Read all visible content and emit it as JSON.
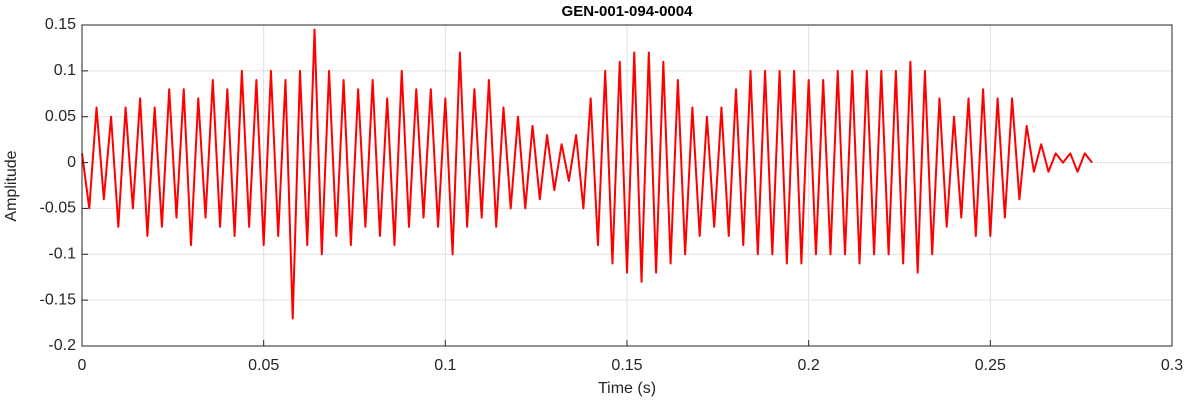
{
  "chart_data": {
    "type": "line",
    "title": "GEN-001-094-0004",
    "x_label": "Time (s)",
    "y_label": "Amplitude",
    "color": "#ff0000",
    "grid": true,
    "xlim": [
      0,
      0.3
    ],
    "xticks": [
      0,
      0.05,
      0.1,
      0.15,
      0.2,
      0.25,
      0.3
    ],
    "ylim": [
      -0.2,
      0.15
    ],
    "yticks": [
      -0.2,
      -0.15,
      -0.1,
      -0.05,
      0,
      0.05,
      0.1,
      0.15
    ],
    "x": [
      0,
      0.002,
      0.004,
      0.006,
      0.008,
      0.01,
      0.012,
      0.014,
      0.016,
      0.018,
      0.02,
      0.022,
      0.024,
      0.026,
      0.028,
      0.03,
      0.032,
      0.034,
      0.036,
      0.038,
      0.04,
      0.042,
      0.044,
      0.046,
      0.048,
      0.05,
      0.052,
      0.054,
      0.056,
      0.058,
      0.06,
      0.062,
      0.064,
      0.066,
      0.068,
      0.07,
      0.072,
      0.074,
      0.076,
      0.078,
      0.08,
      0.082,
      0.084,
      0.086,
      0.088,
      0.09,
      0.092,
      0.094,
      0.096,
      0.098,
      0.1,
      0.102,
      0.104,
      0.106,
      0.108,
      0.11,
      0.112,
      0.114,
      0.116,
      0.118,
      0.12,
      0.122,
      0.124,
      0.126,
      0.128,
      0.13,
      0.132,
      0.134,
      0.136,
      0.138,
      0.14,
      0.142,
      0.144,
      0.146,
      0.148,
      0.15,
      0.152,
      0.154,
      0.156,
      0.158,
      0.16,
      0.162,
      0.164,
      0.166,
      0.168,
      0.17,
      0.172,
      0.174,
      0.176,
      0.178,
      0.18,
      0.182,
      0.184,
      0.186,
      0.188,
      0.19,
      0.192,
      0.194,
      0.196,
      0.198,
      0.2,
      0.202,
      0.204,
      0.206,
      0.208,
      0.21,
      0.212,
      0.214,
      0.216,
      0.218,
      0.22,
      0.222,
      0.224,
      0.226,
      0.228,
      0.23,
      0.232,
      0.234,
      0.236,
      0.238,
      0.24,
      0.242,
      0.244,
      0.246,
      0.248,
      0.25,
      0.252,
      0.254,
      0.256,
      0.258,
      0.26,
      0.262,
      0.264,
      0.266,
      0.268,
      0.27,
      0.272,
      0.274,
      0.276,
      0.278
    ],
    "values": [
      0.01,
      -0.05,
      0.06,
      -0.04,
      0.05,
      -0.07,
      0.06,
      -0.05,
      0.07,
      -0.08,
      0.06,
      -0.07,
      0.08,
      -0.06,
      0.08,
      -0.09,
      0.07,
      -0.06,
      0.09,
      -0.07,
      0.08,
      -0.08,
      0.1,
      -0.07,
      0.09,
      -0.09,
      0.1,
      -0.08,
      0.09,
      -0.17,
      0.1,
      -0.09,
      0.145,
      -0.1,
      0.1,
      -0.08,
      0.09,
      -0.09,
      0.08,
      -0.07,
      0.09,
      -0.08,
      0.07,
      -0.09,
      0.1,
      -0.07,
      0.08,
      -0.06,
      0.08,
      -0.07,
      0.07,
      -0.1,
      0.12,
      -0.07,
      0.08,
      -0.06,
      0.09,
      -0.07,
      0.06,
      -0.05,
      0.05,
      -0.05,
      0.04,
      -0.04,
      0.03,
      -0.03,
      0.02,
      -0.02,
      0.03,
      -0.05,
      0.07,
      -0.09,
      0.1,
      -0.11,
      0.11,
      -0.12,
      0.12,
      -0.13,
      0.12,
      -0.12,
      0.11,
      -0.11,
      0.09,
      -0.1,
      0.06,
      -0.08,
      0.05,
      -0.07,
      0.06,
      -0.08,
      0.08,
      -0.09,
      0.1,
      -0.1,
      0.1,
      -0.1,
      0.1,
      -0.11,
      0.1,
      -0.11,
      0.09,
      -0.1,
      0.09,
      -0.1,
      0.1,
      -0.1,
      0.1,
      -0.11,
      0.1,
      -0.1,
      0.1,
      -0.1,
      0.1,
      -0.11,
      0.11,
      -0.12,
      0.1,
      -0.1,
      0.07,
      -0.07,
      0.05,
      -0.06,
      0.07,
      -0.08,
      0.08,
      -0.08,
      0.07,
      -0.06,
      0.07,
      -0.04,
      0.04,
      -0.01,
      0.02,
      -0.01,
      0.01,
      0,
      0.01,
      -0.01,
      0.01,
      0
    ]
  }
}
